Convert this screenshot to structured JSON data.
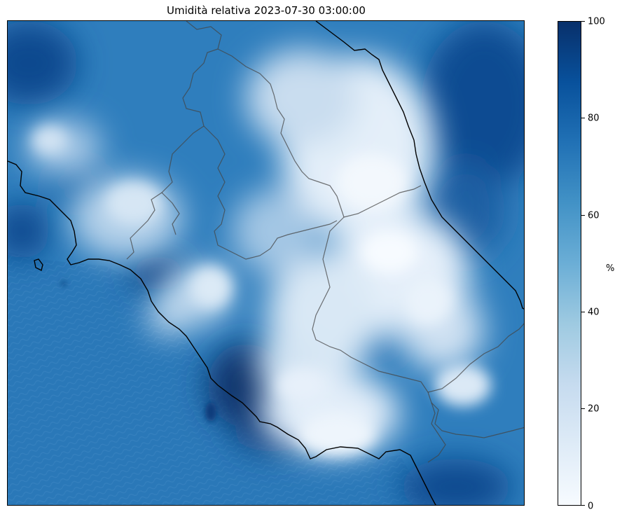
{
  "title": "Umidità relativa 2023-07-30 03:00:00",
  "colorbar": {
    "unit": "%",
    "colormap": "Blues",
    "min": 0,
    "max": 100,
    "ticks": [
      "0",
      "20",
      "40",
      "60",
      "80",
      "100"
    ],
    "colors": [
      "#f7fbff",
      "#deebf7",
      "#c6dbef",
      "#9ecae1",
      "#6baed6",
      "#4292c6",
      "#2171b5",
      "#08519c",
      "#08306b"
    ]
  },
  "map": {
    "variable": "relative humidity",
    "coastline_color": "#000000",
    "border_color": "#444444"
  }
}
